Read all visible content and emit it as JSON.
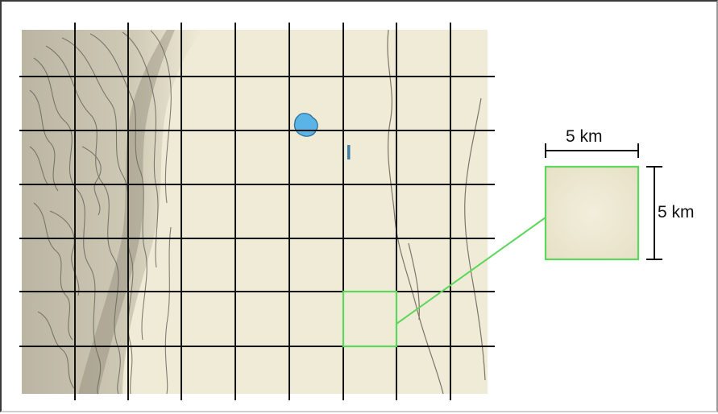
{
  "scale": {
    "width_label": "5 km",
    "height_label": "5 km"
  },
  "colors": {
    "terrain": "#f0ebd6",
    "grid_lines": "#111111",
    "highlight": "#5cd65c",
    "water": "#5ab4e8",
    "contours": "#6a6a60",
    "hill_shading": "#8f8a78"
  },
  "grid": {
    "columns": 8,
    "rows": 7
  },
  "highlighted_cell": {
    "column": 7,
    "row": 6
  }
}
